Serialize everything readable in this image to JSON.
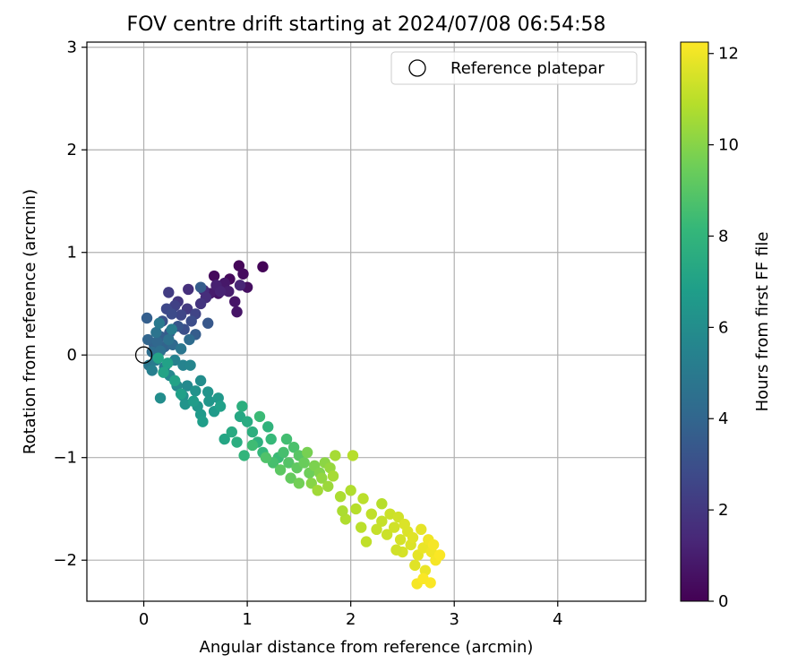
{
  "chart_data": {
    "type": "scatter",
    "title": "FOV centre drift starting at 2024/07/08 06:54:58",
    "xlabel": "Angular distance from reference (arcmin)",
    "ylabel": "Rotation from reference (arcmin)",
    "xlim": [
      -0.55,
      4.85
    ],
    "ylim": [
      -2.4,
      3.05
    ],
    "xticks": [
      0,
      1,
      2,
      3,
      4
    ],
    "yticks": [
      -2,
      -1,
      0,
      1,
      2,
      3
    ],
    "grid": true,
    "legend": {
      "position": "top-right",
      "entries": [
        "Reference platepar"
      ]
    },
    "reference_point": {
      "x": 0,
      "y": 0
    },
    "colorbar": {
      "label": "Hours from first FF file",
      "colormap": "viridis",
      "range": [
        0,
        12.25
      ],
      "ticks": [
        0,
        2,
        4,
        6,
        8,
        10,
        12
      ]
    },
    "series": [
      {
        "name": "Drift",
        "points": [
          {
            "x": 1.15,
            "y": 0.86,
            "t": 0.1
          },
          {
            "x": 0.92,
            "y": 0.87,
            "t": 0.2
          },
          {
            "x": 0.68,
            "y": 0.77,
            "t": 0.3
          },
          {
            "x": 0.83,
            "y": 0.74,
            "t": 0.3
          },
          {
            "x": 0.96,
            "y": 0.79,
            "t": 0.4
          },
          {
            "x": 1.0,
            "y": 0.66,
            "t": 0.5
          },
          {
            "x": 0.72,
            "y": 0.6,
            "t": 0.6
          },
          {
            "x": 0.88,
            "y": 0.52,
            "t": 0.7
          },
          {
            "x": 0.9,
            "y": 0.42,
            "t": 0.7
          },
          {
            "x": 0.78,
            "y": 0.7,
            "t": 0.8
          },
          {
            "x": 0.64,
            "y": 0.6,
            "t": 0.9
          },
          {
            "x": 0.82,
            "y": 0.62,
            "t": 1.0
          },
          {
            "x": 0.7,
            "y": 0.68,
            "t": 1.1
          },
          {
            "x": 0.74,
            "y": 0.62,
            "t": 1.2
          },
          {
            "x": 0.93,
            "y": 0.68,
            "t": 1.3
          },
          {
            "x": 0.58,
            "y": 0.63,
            "t": 1.5
          },
          {
            "x": 0.6,
            "y": 0.56,
            "t": 1.6
          },
          {
            "x": 0.43,
            "y": 0.64,
            "t": 1.7
          },
          {
            "x": 0.55,
            "y": 0.5,
            "t": 1.9
          },
          {
            "x": 0.33,
            "y": 0.52,
            "t": 2.0
          },
          {
            "x": 0.42,
            "y": 0.45,
            "t": 2.1
          },
          {
            "x": 0.24,
            "y": 0.61,
            "t": 2.2
          },
          {
            "x": 0.3,
            "y": 0.48,
            "t": 2.4
          },
          {
            "x": 0.5,
            "y": 0.4,
            "t": 2.5
          },
          {
            "x": 0.36,
            "y": 0.39,
            "t": 2.6
          },
          {
            "x": 0.22,
            "y": 0.45,
            "t": 2.7
          },
          {
            "x": 0.27,
            "y": 0.4,
            "t": 2.8
          },
          {
            "x": 0.46,
            "y": 0.33,
            "t": 2.9
          },
          {
            "x": 0.39,
            "y": 0.25,
            "t": 3.0
          },
          {
            "x": 0.18,
            "y": 0.33,
            "t": 3.1
          },
          {
            "x": 0.33,
            "y": 0.28,
            "t": 3.3
          },
          {
            "x": 0.62,
            "y": 0.31,
            "t": 3.4
          },
          {
            "x": 0.25,
            "y": 0.22,
            "t": 3.5
          },
          {
            "x": 0.5,
            "y": 0.2,
            "t": 3.6
          },
          {
            "x": 0.55,
            "y": 0.66,
            "t": 3.6
          },
          {
            "x": 0.16,
            "y": 0.18,
            "t": 3.7
          },
          {
            "x": 0.03,
            "y": 0.36,
            "t": 3.7
          },
          {
            "x": 0.1,
            "y": 0.1,
            "t": 3.8
          },
          {
            "x": 0.2,
            "y": 0.08,
            "t": 3.9
          },
          {
            "x": 0.04,
            "y": 0.15,
            "t": 4.0
          },
          {
            "x": 0.13,
            "y": 0.13,
            "t": 4.1
          },
          {
            "x": 0.28,
            "y": 0.1,
            "t": 4.2
          },
          {
            "x": 0.44,
            "y": 0.15,
            "t": 4.3
          },
          {
            "x": 0.08,
            "y": 0.03,
            "t": 4.4
          },
          {
            "x": 0.16,
            "y": 0.04,
            "t": 4.5
          },
          {
            "x": 0.24,
            "y": 0.15,
            "t": 4.6
          },
          {
            "x": 0.12,
            "y": 0.22,
            "t": 4.7
          },
          {
            "x": 0.36,
            "y": 0.06,
            "t": 4.8
          },
          {
            "x": 0.05,
            "y": -0.1,
            "t": 4.9
          },
          {
            "x": 0.15,
            "y": 0.31,
            "t": 5.0
          },
          {
            "x": 0.12,
            "y": -0.05,
            "t": 5.1
          },
          {
            "x": 0.2,
            "y": -0.12,
            "t": 5.2
          },
          {
            "x": 0.27,
            "y": 0.25,
            "t": 5.2
          },
          {
            "x": 0.08,
            "y": -0.15,
            "t": 5.3
          },
          {
            "x": 0.3,
            "y": -0.05,
            "t": 5.4
          },
          {
            "x": 0.38,
            "y": -0.1,
            "t": 5.5
          },
          {
            "x": 0.45,
            "y": -0.1,
            "t": 5.6
          },
          {
            "x": 0.25,
            "y": -0.2,
            "t": 5.7
          },
          {
            "x": 0.42,
            "y": -0.3,
            "t": 5.8
          },
          {
            "x": 0.32,
            "y": -0.3,
            "t": 5.9
          },
          {
            "x": 0.55,
            "y": -0.25,
            "t": 6.0
          },
          {
            "x": 0.16,
            "y": -0.42,
            "t": 6.0
          },
          {
            "x": 0.38,
            "y": -0.4,
            "t": 6.1
          },
          {
            "x": 0.5,
            "y": -0.35,
            "t": 6.2
          },
          {
            "x": 0.62,
            "y": -0.36,
            "t": 6.3
          },
          {
            "x": 0.4,
            "y": -0.48,
            "t": 6.3
          },
          {
            "x": 0.52,
            "y": -0.5,
            "t": 6.4
          },
          {
            "x": 0.63,
            "y": -0.45,
            "t": 6.4
          },
          {
            "x": 0.72,
            "y": -0.42,
            "t": 6.5
          },
          {
            "x": 0.68,
            "y": -0.55,
            "t": 6.6
          },
          {
            "x": 0.55,
            "y": -0.58,
            "t": 6.6
          },
          {
            "x": 0.48,
            "y": -0.45,
            "t": 6.7
          },
          {
            "x": 0.57,
            "y": -0.65,
            "t": 6.8
          },
          {
            "x": 0.74,
            "y": -0.5,
            "t": 6.9
          },
          {
            "x": 0.36,
            "y": -0.38,
            "t": 6.9
          },
          {
            "x": 0.3,
            "y": -0.25,
            "t": 7.0
          },
          {
            "x": 0.23,
            "y": -0.08,
            "t": 7.0
          },
          {
            "x": 0.14,
            "y": -0.03,
            "t": 7.1
          },
          {
            "x": 0.19,
            "y": -0.17,
            "t": 7.1
          },
          {
            "x": 0.78,
            "y": -0.82,
            "t": 7.2
          },
          {
            "x": 0.93,
            "y": -0.6,
            "t": 7.3
          },
          {
            "x": 0.85,
            "y": -0.75,
            "t": 7.4
          },
          {
            "x": 1.0,
            "y": -0.65,
            "t": 7.5
          },
          {
            "x": 0.9,
            "y": -0.85,
            "t": 7.6
          },
          {
            "x": 1.05,
            "y": -0.75,
            "t": 7.7
          },
          {
            "x": 0.95,
            "y": -0.5,
            "t": 7.7
          },
          {
            "x": 1.1,
            "y": -0.85,
            "t": 7.8
          },
          {
            "x": 1.2,
            "y": -0.7,
            "t": 7.9
          },
          {
            "x": 0.97,
            "y": -0.98,
            "t": 8.0
          },
          {
            "x": 1.15,
            "y": -0.95,
            "t": 8.1
          },
          {
            "x": 1.23,
            "y": -0.82,
            "t": 8.2
          },
          {
            "x": 1.3,
            "y": -1.0,
            "t": 8.3
          },
          {
            "x": 1.12,
            "y": -0.6,
            "t": 8.3
          },
          {
            "x": 1.05,
            "y": -0.88,
            "t": 8.4
          },
          {
            "x": 1.38,
            "y": -0.82,
            "t": 8.5
          },
          {
            "x": 1.25,
            "y": -1.05,
            "t": 8.6
          },
          {
            "x": 1.35,
            "y": -0.95,
            "t": 8.6
          },
          {
            "x": 1.45,
            "y": -0.9,
            "t": 8.7
          },
          {
            "x": 1.18,
            "y": -1.0,
            "t": 8.8
          },
          {
            "x": 1.4,
            "y": -1.05,
            "t": 8.9
          },
          {
            "x": 1.5,
            "y": -0.98,
            "t": 9.0
          },
          {
            "x": 1.32,
            "y": -1.12,
            "t": 9.1
          },
          {
            "x": 1.48,
            "y": -1.1,
            "t": 9.2
          },
          {
            "x": 1.42,
            "y": -1.2,
            "t": 9.3
          },
          {
            "x": 1.55,
            "y": -1.05,
            "t": 9.4
          },
          {
            "x": 1.6,
            "y": -1.15,
            "t": 9.5
          },
          {
            "x": 1.5,
            "y": -1.25,
            "t": 9.6
          },
          {
            "x": 1.58,
            "y": -0.95,
            "t": 9.7
          },
          {
            "x": 1.65,
            "y": -1.08,
            "t": 9.8
          },
          {
            "x": 1.7,
            "y": -1.15,
            "t": 9.9
          },
          {
            "x": 1.62,
            "y": -1.25,
            "t": 10.0
          },
          {
            "x": 1.75,
            "y": -1.05,
            "t": 10.1
          },
          {
            "x": 1.72,
            "y": -1.2,
            "t": 10.2
          },
          {
            "x": 1.8,
            "y": -1.1,
            "t": 10.3
          },
          {
            "x": 1.78,
            "y": -1.28,
            "t": 10.4
          },
          {
            "x": 1.68,
            "y": -1.32,
            "t": 10.5
          },
          {
            "x": 1.85,
            "y": -0.98,
            "t": 10.6
          },
          {
            "x": 1.83,
            "y": -1.18,
            "t": 10.6
          },
          {
            "x": 1.9,
            "y": -1.38,
            "t": 10.7
          },
          {
            "x": 1.95,
            "y": -1.6,
            "t": 10.8
          },
          {
            "x": 2.0,
            "y": -1.32,
            "t": 10.8
          },
          {
            "x": 2.05,
            "y": -1.5,
            "t": 10.9
          },
          {
            "x": 2.02,
            "y": -0.98,
            "t": 10.9
          },
          {
            "x": 2.1,
            "y": -1.68,
            "t": 11.0
          },
          {
            "x": 2.12,
            "y": -1.4,
            "t": 11.0
          },
          {
            "x": 2.15,
            "y": -1.82,
            "t": 11.1
          },
          {
            "x": 2.2,
            "y": -1.55,
            "t": 11.1
          },
          {
            "x": 2.25,
            "y": -1.7,
            "t": 11.2
          },
          {
            "x": 2.3,
            "y": -1.62,
            "t": 11.2
          },
          {
            "x": 2.35,
            "y": -1.75,
            "t": 11.3
          },
          {
            "x": 2.38,
            "y": -1.55,
            "t": 11.3
          },
          {
            "x": 2.42,
            "y": -1.68,
            "t": 11.4
          },
          {
            "x": 2.46,
            "y": -1.58,
            "t": 11.4
          },
          {
            "x": 2.48,
            "y": -1.8,
            "t": 11.5
          },
          {
            "x": 2.5,
            "y": -1.92,
            "t": 11.5
          },
          {
            "x": 2.55,
            "y": -1.72,
            "t": 11.6
          },
          {
            "x": 2.58,
            "y": -1.85,
            "t": 11.6
          },
          {
            "x": 2.6,
            "y": -1.78,
            "t": 11.7
          },
          {
            "x": 2.62,
            "y": -2.05,
            "t": 11.7
          },
          {
            "x": 2.65,
            "y": -1.95,
            "t": 11.8
          },
          {
            "x": 2.68,
            "y": -1.7,
            "t": 11.8
          },
          {
            "x": 2.7,
            "y": -1.88,
            "t": 11.9
          },
          {
            "x": 2.72,
            "y": -2.1,
            "t": 11.9
          },
          {
            "x": 2.75,
            "y": -1.8,
            "t": 12.0
          },
          {
            "x": 2.78,
            "y": -1.92,
            "t": 12.0
          },
          {
            "x": 2.8,
            "y": -1.85,
            "t": 12.1
          },
          {
            "x": 2.82,
            "y": -2.0,
            "t": 12.1
          },
          {
            "x": 2.86,
            "y": -1.95,
            "t": 12.2
          },
          {
            "x": 2.64,
            "y": -2.23,
            "t": 12.1
          },
          {
            "x": 2.7,
            "y": -2.18,
            "t": 12.2
          },
          {
            "x": 2.77,
            "y": -2.22,
            "t": 12.2
          },
          {
            "x": 2.3,
            "y": -1.45,
            "t": 10.9
          },
          {
            "x": 1.92,
            "y": -1.52,
            "t": 10.7
          },
          {
            "x": 2.52,
            "y": -1.65,
            "t": 11.6
          },
          {
            "x": 2.44,
            "y": -1.9,
            "t": 11.4
          }
        ]
      }
    ]
  }
}
